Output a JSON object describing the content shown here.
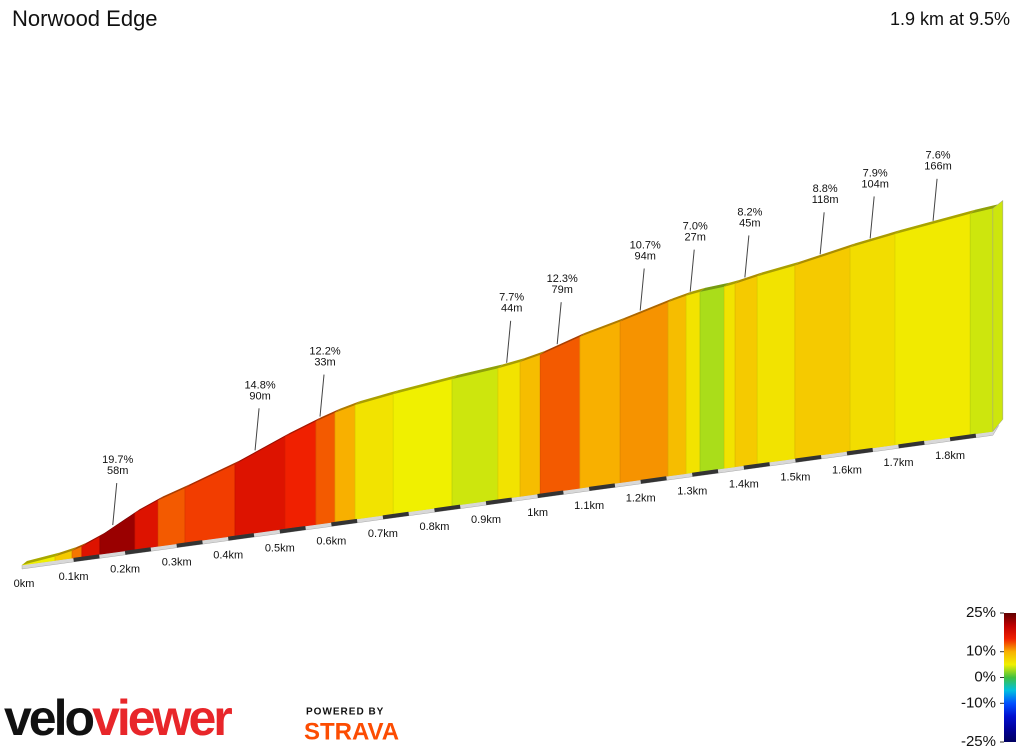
{
  "chart_data": {
    "type": "elevation-profile",
    "title": "Norwood Edge",
    "subtitle": "1.9 km at 9.5%",
    "xlim": [
      0,
      1.9
    ],
    "xticks": [
      {
        "value": 0,
        "label": "0km"
      },
      {
        "value": 0.1,
        "label": "0.1km"
      },
      {
        "value": 0.2,
        "label": "0.2km"
      },
      {
        "value": 0.3,
        "label": "0.3km"
      },
      {
        "value": 0.4,
        "label": "0.4km"
      },
      {
        "value": 0.5,
        "label": "0.5km"
      },
      {
        "value": 0.6,
        "label": "0.6km"
      },
      {
        "value": 0.7,
        "label": "0.7km"
      },
      {
        "value": 0.8,
        "label": "0.8km"
      },
      {
        "value": 0.9,
        "label": "0.9km"
      },
      {
        "value": 1,
        "label": "1km"
      },
      {
        "value": 1.1,
        "label": "1.1km"
      },
      {
        "value": 1.2,
        "label": "1.2km"
      },
      {
        "value": 1.3,
        "label": "1.3km"
      },
      {
        "value": 1.4,
        "label": "1.4km"
      },
      {
        "value": 1.5,
        "label": "1.5km"
      },
      {
        "value": 1.6,
        "label": "1.6km"
      },
      {
        "value": 1.7,
        "label": "1.7km"
      },
      {
        "value": 1.8,
        "label": "1.8km"
      }
    ],
    "segments": {
      "bounds": [
        0,
        0.064,
        0.097,
        0.116,
        0.151,
        0.219,
        0.264,
        0.316,
        0.413,
        0.51,
        0.57,
        0.607,
        0.646,
        0.72,
        0.834,
        0.923,
        0.966,
        1.005,
        1.082,
        1.16,
        1.253,
        1.288,
        1.315,
        1.362,
        1.383,
        1.426,
        1.499,
        1.606,
        1.693,
        1.839,
        1.883
      ],
      "grades": [
        5,
        8,
        12,
        17,
        22,
        17,
        13,
        14,
        17,
        15,
        13,
        10,
        6,
        5,
        4,
        6,
        9,
        13,
        10,
        11,
        9,
        6,
        3,
        6,
        8,
        6,
        8,
        6.5,
        5.5,
        4
      ]
    },
    "annotations": [
      {
        "x": 0.176,
        "grade": {
          "value": 19.7,
          "label": "19.7%"
        },
        "length": {
          "value": 58,
          "label": "58m"
        }
      },
      {
        "x": 0.452,
        "grade": {
          "value": 14.8,
          "label": "14.8%"
        },
        "length": {
          "value": 90,
          "label": "90m"
        }
      },
      {
        "x": 0.578,
        "grade": {
          "value": 12.2,
          "label": "12.2%"
        },
        "length": {
          "value": 33,
          "label": "33m"
        }
      },
      {
        "x": 0.94,
        "grade": {
          "value": 7.7,
          "label": "7.7%"
        },
        "length": {
          "value": 44,
          "label": "44m"
        }
      },
      {
        "x": 1.038,
        "grade": {
          "value": 12.3,
          "label": "12.3%"
        },
        "length": {
          "value": 79,
          "label": "79m"
        }
      },
      {
        "x": 1.199,
        "grade": {
          "value": 10.7,
          "label": "10.7%"
        },
        "length": {
          "value": 94,
          "label": "94m"
        }
      },
      {
        "x": 1.296,
        "grade": {
          "value": 7.0,
          "label": "7.0%"
        },
        "length": {
          "value": 27,
          "label": "27m"
        }
      },
      {
        "x": 1.402,
        "grade": {
          "value": 8.2,
          "label": "8.2%"
        },
        "length": {
          "value": 45,
          "label": "45m"
        }
      },
      {
        "x": 1.548,
        "grade": {
          "value": 8.8,
          "label": "8.8%"
        },
        "length": {
          "value": 118,
          "label": "118m"
        }
      },
      {
        "x": 1.645,
        "grade": {
          "value": 7.9,
          "label": "7.9%"
        },
        "length": {
          "value": 104,
          "label": "104m"
        }
      },
      {
        "x": 1.767,
        "grade": {
          "value": 7.6,
          "label": "7.6%"
        },
        "length": {
          "value": 166,
          "label": "166m"
        }
      }
    ],
    "colorbar": {
      "lim": [
        -25,
        25
      ],
      "ticks": [
        {
          "value": 25,
          "label": "25%"
        },
        {
          "value": 10,
          "label": "10%"
        },
        {
          "value": 0,
          "label": "0%"
        },
        {
          "value": -10,
          "label": "-10%"
        },
        {
          "value": -25,
          "label": "-25%"
        }
      ],
      "colors": [
        "#000060",
        "#00009a",
        "#0010d0",
        "#0050ff",
        "#00c0e0",
        "#40c040",
        "#f0f000",
        "#f8b000",
        "#f02000",
        "#c00000",
        "#600000"
      ]
    }
  },
  "logo": [
    "velo",
    "viewer"
  ],
  "powered_by": "POWERED BY",
  "strava": "STRAVA"
}
